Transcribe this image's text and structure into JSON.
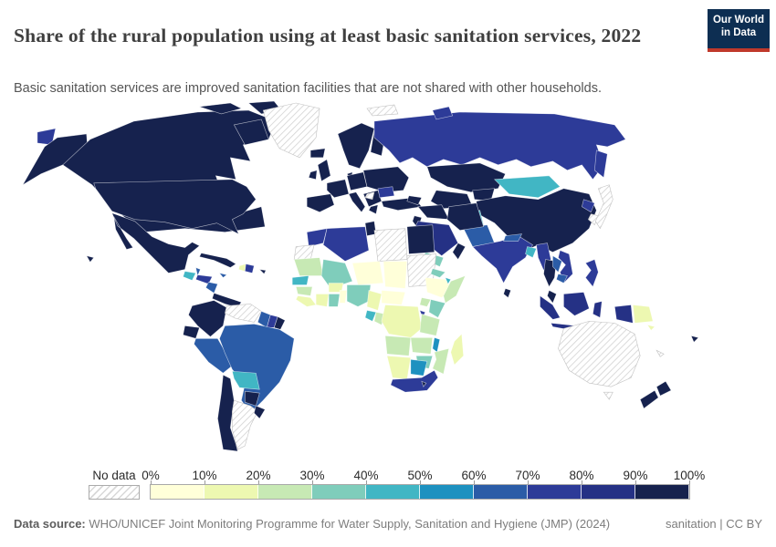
{
  "header": {
    "title": "Share of the rural population using at least basic sanitation services, 2022",
    "subtitle": "Basic sanitation services are improved sanitation facilities that are not shared with other households.",
    "logo": {
      "line1": "Our World",
      "line2": "in Data",
      "bg_color": "#0d2e52",
      "accent_color": "#c0392b"
    }
  },
  "legend": {
    "no_data_label": "No data",
    "ticks": [
      "0%",
      "10%",
      "20%",
      "30%",
      "40%",
      "50%",
      "60%",
      "70%",
      "80%",
      "90%",
      "100%"
    ],
    "colors": [
      "#ffffd9",
      "#edf8b1",
      "#c7e9b4",
      "#7fcdbb",
      "#41b6c4",
      "#1d91c0",
      "#2b5ca7",
      "#2d3b98",
      "#253185",
      "#16224e"
    ]
  },
  "footer": {
    "source_label": "Data source:",
    "source_text": " WHO/UNICEF Joint Monitoring Programme for Water Supply, Sanitation and Hygiene (JMP) (2024)",
    "right_text": "sanitation | CC BY"
  },
  "chart_data": {
    "type": "choropleth",
    "title": "Share of the rural population using at least basic sanitation services",
    "year": "2022",
    "unit": "%",
    "bins": [
      "0-10",
      "10-20",
      "20-30",
      "30-40",
      "40-50",
      "50-60",
      "60-70",
      "70-80",
      "80-90",
      "90-100"
    ],
    "band_colors": {
      "0-10": "#ffffd9",
      "10-20": "#edf8b1",
      "20-30": "#c7e9b4",
      "30-40": "#7fcdbb",
      "40-50": "#41b6c4",
      "50-60": "#1d91c0",
      "60-70": "#2b5ca7",
      "70-80": "#2d3b98",
      "80-90": "#253185",
      "90-100": "#16224e",
      "no-data": "hatch"
    },
    "values": {
      "usa": "90-100",
      "canada": "90-100",
      "mexico": "90-100",
      "cuba": "90-100",
      "puerto-rico": "90-100",
      "costa-rica-panama": "90-100",
      "colombia": "90-100",
      "ecuador": "90-100",
      "french-guiana": "90-100",
      "paraguay": "90-100",
      "chile": "90-100",
      "uruguay": "90-100",
      "iceland": "90-100",
      "united-kingdom": "90-100",
      "ireland": "90-100",
      "norway-sweden": "90-100",
      "finland": "90-100",
      "denmark": "90-100",
      "spain-portugal": "90-100",
      "france": "90-100",
      "central-europe": "90-100",
      "italy": "90-100",
      "eastern-europe": "90-100",
      "balkans": "90-100",
      "greece": "90-100",
      "turkey": "90-100",
      "syria-iraq": "90-100",
      "iran": "90-100",
      "oman": "90-100",
      "israel-jordan": "90-100",
      "tunisia": "90-100",
      "egypt": "90-100",
      "kazakhstan": "90-100",
      "uzbekistan-turkmenistan": "90-100",
      "kyrgyzstan-tajikistan": "90-100",
      "caucasus": "90-100",
      "china": "90-100",
      "sri-lanka": "90-100",
      "thailand": "90-100",
      "malaysia": "90-100",
      "new-zealand": "90-100",
      "fiji": "90-100",
      "lesotho": "90-100",
      "saudi-arabia": "80-90",
      "indonesia": "80-90",
      "russia": "70-80",
      "india": "70-80",
      "morocco": "70-80",
      "algeria": "70-80",
      "south-africa": "70-80",
      "romania": "70-80",
      "myanmar": "70-80",
      "vietnam": "70-80",
      "north-korea": "70-80",
      "philippines": "70-80",
      "honduras": "70-80",
      "dominican-republic": "70-80",
      "suriname": "70-80",
      "rwanda-burundi": "70-80",
      "brazil": "60-70",
      "peru": "60-70",
      "pakistan": "60-70",
      "guyana": "60-70",
      "nicaragua": "60-70",
      "belize": "60-70",
      "laos": "60-70",
      "cambodia": "60-70",
      "nepal": "60-70",
      "jamaica": "60-70",
      "malawi": "50-60",
      "botswana": "50-60",
      "guatemala": "40-50",
      "bolivia": "40-50",
      "mongolia": "40-50",
      "afghanistan": "40-50",
      "bangladesh": "40-50",
      "senegal": "40-50",
      "gabon": "40-50",
      "djibouti": "40-50",
      "mali": "30-40",
      "nigeria": "30-40",
      "ghana": "30-40",
      "kenya": "30-40",
      "zimbabwe": "30-40",
      "eritrea": "30-40",
      "yemen": "30-40",
      "mauritania": "20-30",
      "guinea": "20-30",
      "somalia": "20-30",
      "uganda": "20-30",
      "tanzania": "20-30",
      "angola": "20-30",
      "zambia": "20-30",
      "mozambique": "20-30",
      "congo": "20-30",
      "haiti": "10-20",
      "dr-congo": "10-20",
      "namibia": "10-20",
      "madagascar": "10-20",
      "papua-new-guinea": "10-20",
      "burkina-faso": "10-20",
      "ivory-coast": "10-20",
      "sierra-leone-liberia": "10-20",
      "cameroon": "10-20",
      "solomon-islands": "10-20",
      "niger": "0-10",
      "chad": "0-10",
      "ethiopia": "0-10",
      "togo-benin": "0-10",
      "central-african-republic": "0-10",
      "greenland": "no-data",
      "venezuela": "no-data",
      "argentina": "no-data",
      "western-sahara": "no-data",
      "libya": "no-data",
      "sudan": "no-data",
      "australia": "no-data",
      "tasmania": "no-data",
      "japan": "no-data",
      "south-korea": "no-data",
      "serbia": "no-data",
      "svalbard": "no-data",
      "new-caledonia": "no-data"
    }
  }
}
